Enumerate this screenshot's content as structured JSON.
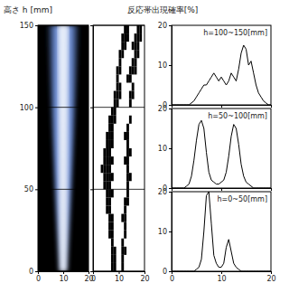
{
  "chart_data": [
    {
      "type": "image",
      "y_label": "高さ h [mm]",
      "xlim": [
        0,
        20
      ],
      "xticks": [
        0,
        10,
        20
      ],
      "ylim": [
        0,
        150
      ],
      "yticks": [
        0,
        50,
        100,
        150
      ],
      "color": "#7fa8ff",
      "grid": true
    },
    {
      "type": "binary_map",
      "title": "反応帯出現確率[%]",
      "xlim": [
        0,
        20
      ],
      "xticks": [
        0,
        10,
        20
      ],
      "ylim": [
        0,
        150
      ],
      "yticks": [
        0,
        50,
        100,
        150
      ],
      "grid": true,
      "tick_labels": "x",
      "color": "#000000",
      "cells": [
        [
          7,
          8,
          11
        ],
        [
          7,
          8,
          11
        ],
        [
          7,
          8,
          11,
          12
        ],
        [
          7,
          11
        ],
        [
          6,
          7,
          12
        ],
        [
          6,
          7,
          12
        ],
        [
          6,
          7,
          11,
          12
        ],
        [
          5,
          6,
          12
        ],
        [
          5,
          6,
          12,
          13
        ],
        [
          5,
          6,
          7,
          13
        ],
        [
          4,
          5,
          6,
          13
        ],
        [
          4,
          5,
          6,
          7,
          13,
          14
        ],
        [
          3,
          4,
          5,
          6,
          13
        ],
        [
          4,
          5,
          6,
          7,
          12,
          13
        ],
        [
          4,
          5,
          6,
          13,
          14
        ],
        [
          5,
          6,
          7,
          13
        ],
        [
          5,
          6,
          7,
          12,
          13
        ],
        [
          6,
          7,
          13
        ],
        [
          6,
          7,
          8,
          14
        ],
        [
          7,
          8
        ],
        [
          8,
          9,
          14
        ],
        [
          8,
          9,
          10,
          14,
          15
        ],
        [
          9,
          10,
          15
        ],
        [
          9,
          13,
          14
        ],
        [
          9,
          10,
          14,
          15,
          16
        ],
        [
          10,
          15,
          16
        ],
        [
          10,
          11,
          16,
          17
        ],
        [
          11,
          12,
          15,
          16,
          17
        ],
        [
          11,
          12,
          13,
          16,
          17,
          18
        ],
        [
          12,
          13,
          17,
          18
        ]
      ]
    },
    {
      "type": "line",
      "annotation": "h=100~150[mm]",
      "xlim": [
        0,
        20
      ],
      "xticks": [
        0,
        10,
        20
      ],
      "ylim": [
        0,
        20
      ],
      "yticks": [
        0,
        10,
        20
      ],
      "tick_labels": "y",
      "color": "#000000",
      "x": [
        0,
        0.5,
        1,
        1.5,
        2,
        2.5,
        3,
        3.5,
        4,
        4.5,
        5,
        5.5,
        6,
        6.5,
        7,
        7.5,
        8,
        8.5,
        9,
        9.5,
        10,
        10.5,
        11,
        11.5,
        12,
        12.5,
        13,
        13.5,
        14,
        14.5,
        15,
        15.5,
        16,
        16.5,
        17,
        17.5,
        18,
        18.5,
        19,
        19.5,
        20
      ],
      "values": [
        0,
        0,
        0,
        0,
        0,
        0,
        0,
        0,
        0.5,
        1,
        2,
        3,
        4,
        5,
        5,
        6,
        7,
        8,
        7,
        6,
        7,
        6,
        5,
        6,
        8,
        7,
        6,
        9,
        13,
        15,
        14,
        10,
        11,
        8,
        5,
        3,
        2,
        1,
        0.5,
        0,
        0
      ]
    },
    {
      "type": "line",
      "annotation": "h=50~100[mm]",
      "xlim": [
        0,
        20
      ],
      "xticks": [
        0,
        10,
        20
      ],
      "ylim": [
        0,
        20
      ],
      "yticks": [
        0,
        10,
        20
      ],
      "tick_labels": "y",
      "color": "#000000",
      "x": [
        0,
        0.5,
        1,
        1.5,
        2,
        2.5,
        3,
        3.5,
        4,
        4.5,
        5,
        5.5,
        6,
        6.5,
        7,
        7.5,
        8,
        8.5,
        9,
        9.5,
        10,
        10.5,
        11,
        11.5,
        12,
        12.5,
        13,
        13.5,
        14,
        14.5,
        15,
        15.5,
        16,
        16.5,
        17,
        17.5,
        18,
        18.5,
        19,
        19.5,
        20
      ],
      "values": [
        0,
        0,
        0,
        0,
        0,
        0,
        0.5,
        1,
        3,
        7,
        12,
        16,
        17,
        15,
        9,
        4,
        2,
        1.5,
        1,
        1,
        1.5,
        2,
        4,
        8,
        13,
        16,
        15,
        11,
        6,
        3,
        1.5,
        1,
        0.5,
        0,
        0,
        0,
        0,
        0,
        0,
        0,
        0
      ]
    },
    {
      "type": "line",
      "annotation": "h=0~50[mm]",
      "xlim": [
        0,
        20
      ],
      "xticks": [
        0,
        10,
        20
      ],
      "ylim": [
        0,
        20
      ],
      "yticks": [
        0,
        10,
        20
      ],
      "color": "#000000",
      "x": [
        0,
        0.5,
        1,
        1.5,
        2,
        2.5,
        3,
        3.5,
        4,
        4.5,
        5,
        5.5,
        6,
        6.5,
        7,
        7.5,
        8,
        8.5,
        9,
        9.5,
        10,
        10.5,
        11,
        11.5,
        12,
        12.5,
        13,
        13.5,
        14,
        14.5,
        15,
        15.5,
        16,
        16.5,
        17,
        17.5,
        18,
        18.5,
        19,
        19.5,
        20
      ],
      "values": [
        0,
        0,
        0,
        0,
        0,
        0,
        0,
        0,
        0,
        0,
        0.5,
        1,
        3,
        10,
        19,
        20,
        12,
        4,
        2,
        1,
        1,
        2,
        6,
        8,
        5,
        2,
        1,
        0.5,
        0,
        0,
        0,
        0,
        0,
        0,
        0,
        0,
        0,
        0,
        0,
        0,
        0
      ]
    }
  ]
}
